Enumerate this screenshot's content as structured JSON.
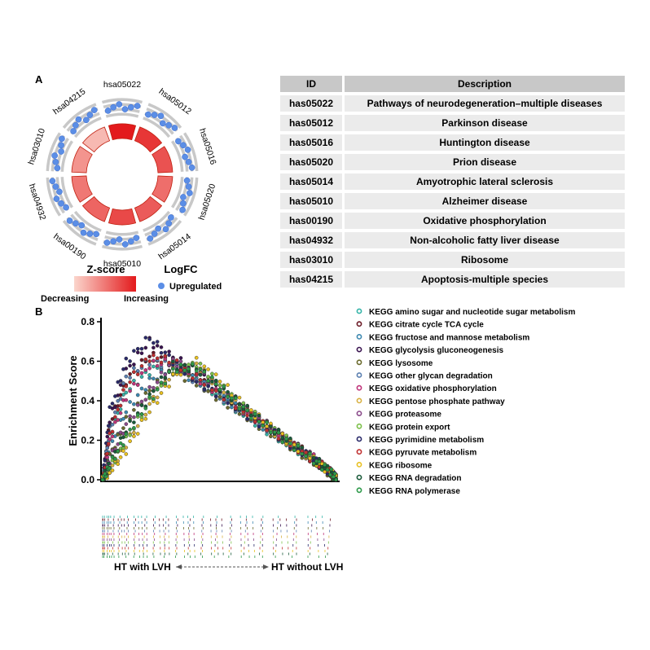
{
  "panel_a": {
    "label": "A"
  },
  "panel_b": {
    "label": "B"
  },
  "circle_plot": {
    "sectors": [
      "hsa05022",
      "hsa05012",
      "hsa05016",
      "hsa05020",
      "hsa05014",
      "hsa05010",
      "hsa00190",
      "hsa04932",
      "hsa03010",
      "hsa04215"
    ],
    "legend": {
      "zscore_title": "Z-score",
      "decreasing": "Decreasing",
      "increasing": "Increasing",
      "logfc_title": "LogFC",
      "upregulated": "Upregulated"
    },
    "colors": {
      "z_light": "#fbd5cc",
      "z_dark": "#e31a1c",
      "point": "#5b8ee6",
      "ring": "#c8c8c8"
    }
  },
  "kegg_table": {
    "headers": [
      "ID",
      "Description"
    ],
    "rows": [
      [
        "has05022",
        "Pathways of neurodegeneration–multiple diseases"
      ],
      [
        "has05012",
        "Parkinson disease"
      ],
      [
        "has05016",
        "Huntington disease"
      ],
      [
        "has05020",
        "Prion disease"
      ],
      [
        "has05014",
        "Amyotrophic lateral sclerosis"
      ],
      [
        "has05010",
        "Alzheimer disease"
      ],
      [
        "has00190",
        "Oxidative phosphorylation"
      ],
      [
        "has04932",
        "Non-alcoholic fatty liver disease"
      ],
      [
        "has03010",
        "Ribosome"
      ],
      [
        "has04215",
        "Apoptosis-multiple species"
      ]
    ]
  },
  "chart_data": {
    "type": "scatter",
    "ylabel": "Enrichment Score",
    "ylim": [
      0.0,
      0.8
    ],
    "yticks": [
      0.0,
      0.2,
      0.4,
      0.6,
      0.8
    ],
    "xlim": [
      0,
      1
    ],
    "bottom_left_label": "HT with LVH",
    "bottom_right_label": "HT without LVH",
    "legend_position": "right",
    "series": [
      {
        "name": "KEGG amino sugar and nucleotide sugar metabolism",
        "color": "#35b4a8",
        "x": [
          0.0,
          0.03,
          0.1,
          0.2,
          0.3,
          0.4,
          0.5,
          0.6,
          0.7,
          0.8,
          0.9,
          0.97,
          1.0
        ],
        "y": [
          0.0,
          0.22,
          0.45,
          0.55,
          0.6,
          0.5,
          0.42,
          0.33,
          0.25,
          0.17,
          0.1,
          0.04,
          0.0
        ]
      },
      {
        "name": "KEGG citrate cycle TCA cycle",
        "color": "#6b1a26",
        "x": [
          0.0,
          0.03,
          0.1,
          0.2,
          0.3,
          0.4,
          0.5,
          0.6,
          0.7,
          0.8,
          0.9,
          0.97,
          1.0
        ],
        "y": [
          0.0,
          0.28,
          0.5,
          0.63,
          0.6,
          0.52,
          0.45,
          0.35,
          0.27,
          0.19,
          0.11,
          0.04,
          0.0
        ]
      },
      {
        "name": "KEGG fructose and mannose metabolism",
        "color": "#3c88b0",
        "x": [
          0.0,
          0.03,
          0.1,
          0.2,
          0.3,
          0.4,
          0.5,
          0.6,
          0.7,
          0.8,
          0.9,
          0.97,
          1.0
        ],
        "y": [
          0.0,
          0.15,
          0.35,
          0.5,
          0.57,
          0.5,
          0.43,
          0.34,
          0.26,
          0.18,
          0.1,
          0.04,
          0.0
        ]
      },
      {
        "name": "KEGG glycolysis gluconeogenesis",
        "color": "#3a1450",
        "x": [
          0.0,
          0.03,
          0.1,
          0.2,
          0.3,
          0.4,
          0.5,
          0.6,
          0.7,
          0.8,
          0.9,
          0.97,
          1.0
        ],
        "y": [
          0.0,
          0.3,
          0.55,
          0.7,
          0.62,
          0.55,
          0.47,
          0.37,
          0.28,
          0.19,
          0.11,
          0.04,
          0.0
        ]
      },
      {
        "name": "KEGG lysosome",
        "color": "#6b6b2e",
        "x": [
          0.0,
          0.03,
          0.1,
          0.2,
          0.3,
          0.4,
          0.5,
          0.6,
          0.7,
          0.8,
          0.9,
          0.97,
          1.0
        ],
        "y": [
          0.0,
          0.12,
          0.3,
          0.45,
          0.55,
          0.49,
          0.41,
          0.33,
          0.25,
          0.17,
          0.09,
          0.03,
          0.0
        ]
      },
      {
        "name": "KEGG other glycan degradation",
        "color": "#5a7fb0",
        "x": [
          0.0,
          0.03,
          0.1,
          0.2,
          0.3,
          0.4,
          0.5,
          0.6,
          0.7,
          0.8,
          0.9,
          0.97,
          1.0
        ],
        "y": [
          0.0,
          0.25,
          0.52,
          0.6,
          0.58,
          0.5,
          0.42,
          0.34,
          0.26,
          0.18,
          0.1,
          0.04,
          0.0
        ]
      },
      {
        "name": "KEGG oxidative phosphorylation",
        "color": "#c0357a",
        "x": [
          0.0,
          0.03,
          0.1,
          0.2,
          0.3,
          0.4,
          0.5,
          0.6,
          0.7,
          0.8,
          0.9,
          0.97,
          1.0
        ],
        "y": [
          0.0,
          0.2,
          0.42,
          0.58,
          0.6,
          0.51,
          0.44,
          0.35,
          0.27,
          0.19,
          0.11,
          0.04,
          0.0
        ]
      },
      {
        "name": "KEGG pentose phosphate pathway",
        "color": "#d8b040",
        "x": [
          0.0,
          0.03,
          0.1,
          0.2,
          0.3,
          0.4,
          0.5,
          0.6,
          0.7,
          0.8,
          0.9,
          0.97,
          1.0
        ],
        "y": [
          0.0,
          0.05,
          0.18,
          0.38,
          0.55,
          0.58,
          0.46,
          0.36,
          0.27,
          0.18,
          0.1,
          0.04,
          0.0
        ]
      },
      {
        "name": "KEGG proteasome",
        "color": "#8a4a8a",
        "x": [
          0.0,
          0.03,
          0.1,
          0.2,
          0.3,
          0.4,
          0.5,
          0.6,
          0.7,
          0.8,
          0.9,
          0.97,
          1.0
        ],
        "y": [
          0.0,
          0.1,
          0.28,
          0.45,
          0.6,
          0.55,
          0.47,
          0.37,
          0.28,
          0.19,
          0.11,
          0.04,
          0.0
        ]
      },
      {
        "name": "KEGG protein export",
        "color": "#7cc04a",
        "x": [
          0.0,
          0.03,
          0.1,
          0.2,
          0.3,
          0.4,
          0.5,
          0.6,
          0.7,
          0.8,
          0.9,
          0.97,
          1.0
        ],
        "y": [
          0.0,
          0.06,
          0.2,
          0.4,
          0.55,
          0.59,
          0.48,
          0.37,
          0.28,
          0.19,
          0.1,
          0.04,
          0.0
        ]
      },
      {
        "name": "KEGG pyrimidine metabolism",
        "color": "#2a2a6a",
        "x": [
          0.0,
          0.03,
          0.1,
          0.2,
          0.3,
          0.4,
          0.5,
          0.6,
          0.7,
          0.8,
          0.9,
          0.97,
          1.0
        ],
        "y": [
          0.0,
          0.35,
          0.6,
          0.72,
          0.6,
          0.5,
          0.43,
          0.34,
          0.26,
          0.18,
          0.1,
          0.04,
          0.0
        ]
      },
      {
        "name": "KEGG pyruvate metabolism",
        "color": "#c03030",
        "x": [
          0.0,
          0.03,
          0.1,
          0.2,
          0.3,
          0.4,
          0.5,
          0.6,
          0.7,
          0.8,
          0.9,
          0.97,
          1.0
        ],
        "y": [
          0.0,
          0.22,
          0.48,
          0.62,
          0.6,
          0.52,
          0.44,
          0.35,
          0.27,
          0.18,
          0.1,
          0.04,
          0.0
        ]
      },
      {
        "name": "KEGG ribosome",
        "color": "#e8c020",
        "x": [
          0.0,
          0.03,
          0.1,
          0.2,
          0.3,
          0.4,
          0.5,
          0.6,
          0.7,
          0.8,
          0.9,
          0.97,
          1.0
        ],
        "y": [
          0.0,
          0.04,
          0.15,
          0.35,
          0.52,
          0.6,
          0.5,
          0.38,
          0.28,
          0.19,
          0.1,
          0.04,
          0.0
        ]
      },
      {
        "name": "KEGG RNA degradation",
        "color": "#1a5a3a",
        "x": [
          0.0,
          0.03,
          0.1,
          0.2,
          0.3,
          0.4,
          0.5,
          0.6,
          0.7,
          0.8,
          0.9,
          0.97,
          1.0
        ],
        "y": [
          0.0,
          0.08,
          0.25,
          0.42,
          0.58,
          0.56,
          0.47,
          0.37,
          0.28,
          0.19,
          0.11,
          0.04,
          0.0
        ]
      },
      {
        "name": "KEGG RNA polymerase",
        "color": "#2e9a4a",
        "x": [
          0.0,
          0.03,
          0.1,
          0.2,
          0.3,
          0.4,
          0.5,
          0.6,
          0.7,
          0.8,
          0.9,
          0.97,
          1.0
        ],
        "y": [
          0.0,
          0.07,
          0.22,
          0.4,
          0.56,
          0.57,
          0.47,
          0.36,
          0.27,
          0.18,
          0.1,
          0.04,
          0.0
        ]
      }
    ]
  }
}
